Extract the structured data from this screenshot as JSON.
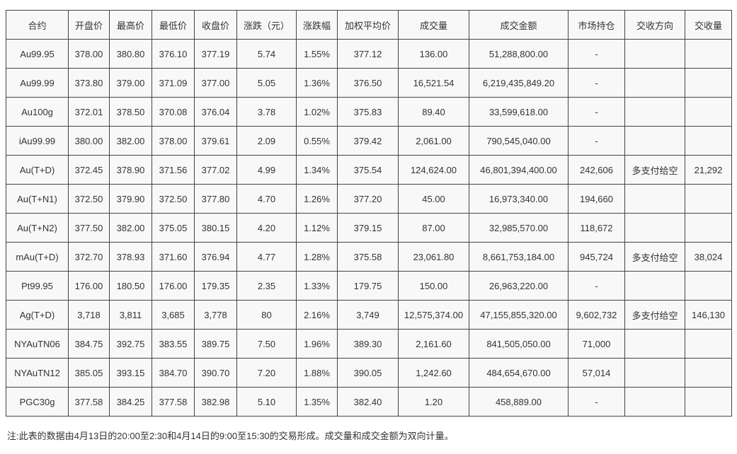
{
  "table": {
    "headers": [
      "合约",
      "开盘价",
      "最高价",
      "最低价",
      "收盘价",
      "涨跌（元）",
      "涨跌幅",
      "加权平均价",
      "成交量",
      "成交金额",
      "市场持仓",
      "交收方向",
      "交收量"
    ],
    "rows": [
      [
        "Au99.95",
        "378.00",
        "380.80",
        "376.10",
        "377.19",
        "5.74",
        "1.55%",
        "377.12",
        "136.00",
        "51,288,800.00",
        "-",
        "",
        ""
      ],
      [
        "Au99.99",
        "373.80",
        "379.00",
        "371.09",
        "377.00",
        "5.05",
        "1.36%",
        "376.50",
        "16,521.54",
        "6,219,435,849.20",
        "-",
        "",
        ""
      ],
      [
        "Au100g",
        "372.01",
        "378.50",
        "370.08",
        "376.04",
        "3.78",
        "1.02%",
        "375.83",
        "89.40",
        "33,599,618.00",
        "-",
        "",
        ""
      ],
      [
        "iAu99.99",
        "380.00",
        "382.00",
        "378.00",
        "379.61",
        "2.09",
        "0.55%",
        "379.42",
        "2,061.00",
        "790,545,040.00",
        "-",
        "",
        ""
      ],
      [
        "Au(T+D)",
        "372.45",
        "378.90",
        "371.56",
        "377.02",
        "4.99",
        "1.34%",
        "375.54",
        "124,624.00",
        "46,801,394,400.00",
        "242,606",
        "多支付给空",
        "21,292"
      ],
      [
        "Au(T+N1)",
        "372.50",
        "379.90",
        "372.50",
        "377.80",
        "4.70",
        "1.26%",
        "377.20",
        "45.00",
        "16,973,340.00",
        "194,660",
        "",
        ""
      ],
      [
        "Au(T+N2)",
        "377.50",
        "382.00",
        "375.05",
        "380.15",
        "4.20",
        "1.12%",
        "379.15",
        "87.00",
        "32,985,570.00",
        "118,672",
        "",
        ""
      ],
      [
        "mAu(T+D)",
        "372.70",
        "378.93",
        "371.60",
        "376.94",
        "4.77",
        "1.28%",
        "375.58",
        "23,061.80",
        "8,661,753,184.00",
        "945,724",
        "多支付给空",
        "38,024"
      ],
      [
        "Pt99.95",
        "176.00",
        "180.50",
        "176.00",
        "179.35",
        "2.35",
        "1.33%",
        "179.75",
        "150.00",
        "26,963,220.00",
        "-",
        "",
        ""
      ],
      [
        "Ag(T+D)",
        "3,718",
        "3,811",
        "3,685",
        "3,778",
        "80",
        "2.16%",
        "3,749",
        "12,575,374.00",
        "47,155,855,320.00",
        "9,602,732",
        "多支付给空",
        "146,130"
      ],
      [
        "NYAuTN06",
        "384.75",
        "392.75",
        "383.55",
        "389.75",
        "7.50",
        "1.96%",
        "389.30",
        "2,161.60",
        "841,505,050.00",
        "71,000",
        "",
        ""
      ],
      [
        "NYAuTN12",
        "385.05",
        "393.15",
        "384.70",
        "390.70",
        "7.20",
        "1.88%",
        "390.05",
        "1,242.60",
        "484,654,670.00",
        "57,014",
        "",
        ""
      ],
      [
        "PGC30g",
        "377.58",
        "384.25",
        "377.58",
        "382.98",
        "5.10",
        "1.35%",
        "382.40",
        "1.20",
        "458,889.00",
        "-",
        "",
        ""
      ]
    ],
    "column_keys": [
      "contract",
      "open",
      "high",
      "low",
      "close",
      "change",
      "change-pct",
      "weighted-avg",
      "volume",
      "turnover",
      "open-interest",
      "delivery-direction",
      "delivery-volume"
    ]
  },
  "note": "注:此表的数据由4月13日的20:00至2:30和4月14日的9:00至15:30的交易形成。成交量和成交金额为双向计量。"
}
